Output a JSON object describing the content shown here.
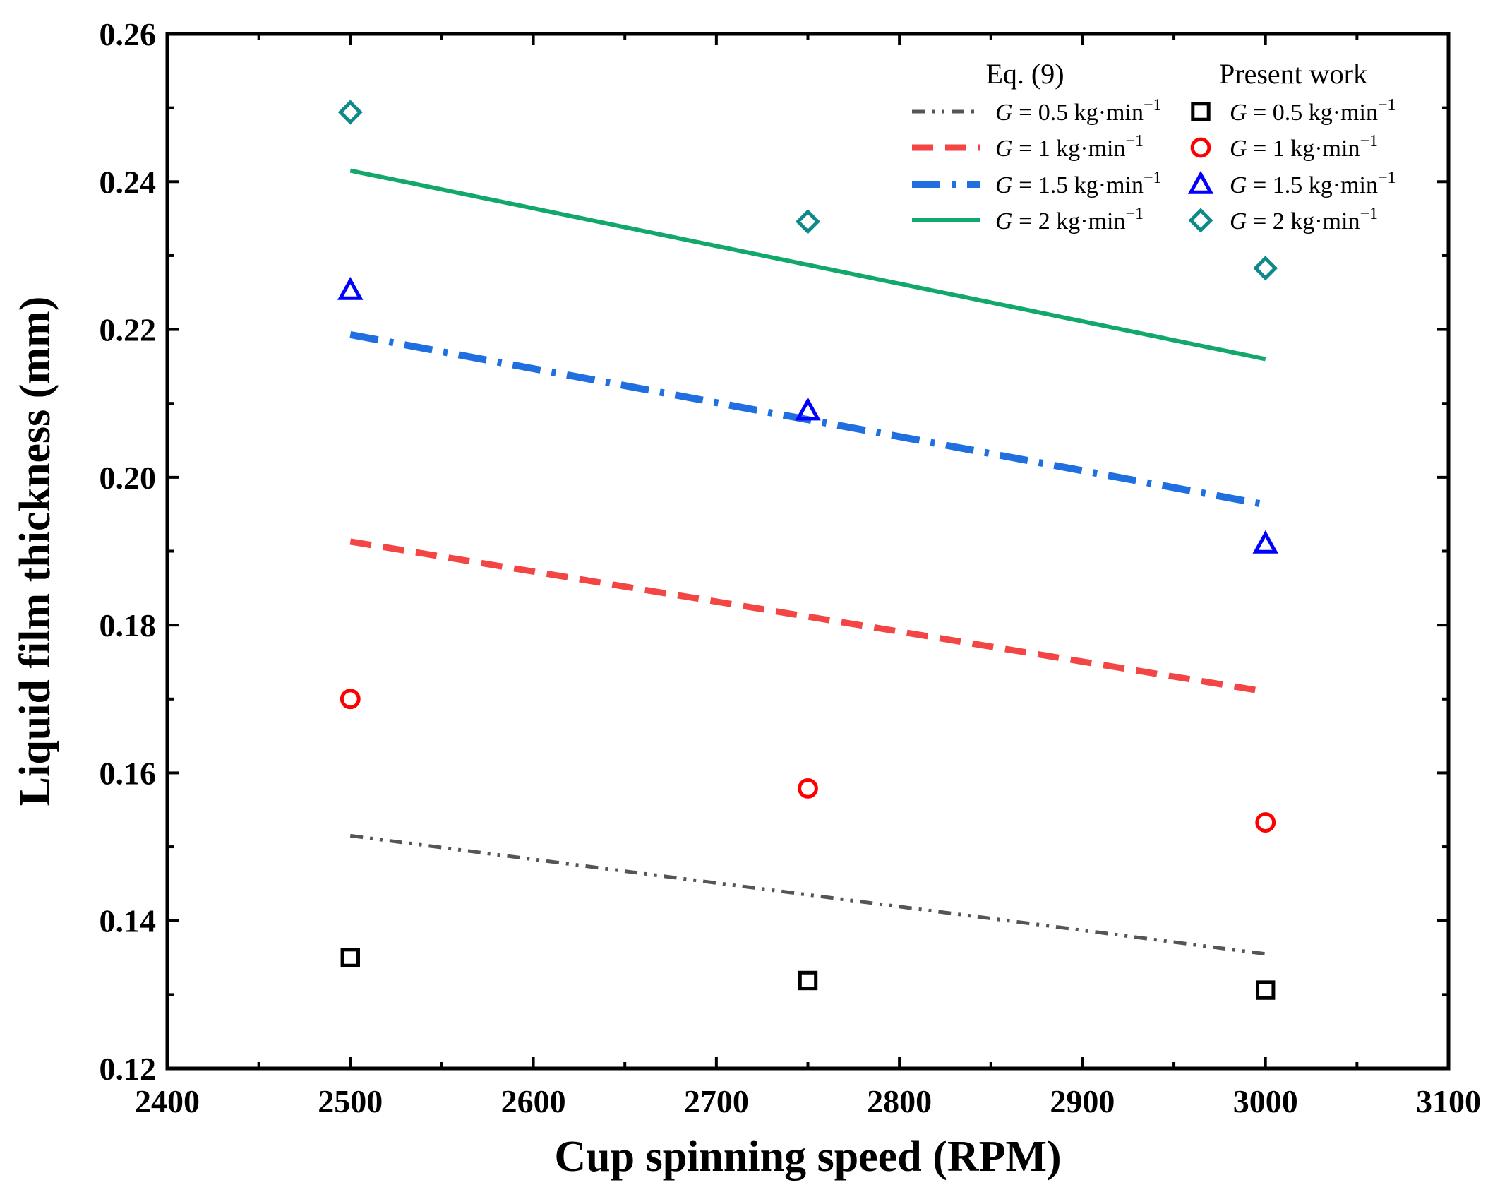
{
  "chart_data": {
    "type": "line",
    "title": "",
    "xlabel": "Cup spinning speed (RPM)",
    "ylabel": "Liquid film thickness (mm)",
    "xlim": [
      2400,
      3100
    ],
    "ylim": [
      0.12,
      0.26
    ],
    "xticks": [
      2400,
      2500,
      2600,
      2700,
      2800,
      2900,
      3000,
      3100
    ],
    "xtick_labels": [
      "2400",
      "2500",
      "2600",
      "2700",
      "2800",
      "2900",
      "3000",
      "3100"
    ],
    "yticks": [
      0.12,
      0.14,
      0.16,
      0.18,
      0.2,
      0.22,
      0.24,
      0.26
    ],
    "ytick_labels": [
      "0.12",
      "0.14",
      "0.16",
      "0.18",
      "0.20",
      "0.22",
      "0.24",
      "0.26"
    ],
    "legend": {
      "placement": "top-right",
      "group_titles": [
        "Eq. (9)",
        "Present work"
      ]
    },
    "series": [
      {
        "name": "G = 0.5 kg·min⁻¹",
        "group": "Eq. (9)",
        "kind": "line",
        "style": "dash-dot-dot",
        "color": "#555555",
        "x": [
          2500,
          3000
        ],
        "y": [
          0.1515,
          0.1355
        ],
        "label_italic": "G",
        "label_rest": " = 0.5 kg·min",
        "label_sup": "−1"
      },
      {
        "name": "G = 1 kg·min⁻¹",
        "group": "Eq. (9)",
        "kind": "line",
        "style": "dash",
        "color": "#f44545",
        "x": [
          2500,
          3000
        ],
        "y": [
          0.1913,
          0.171
        ],
        "label_italic": "G",
        "label_rest": " = 1 kg·min",
        "label_sup": "−1"
      },
      {
        "name": "G = 1.5 kg·min⁻¹",
        "group": "Eq. (9)",
        "kind": "line",
        "style": "dash-dot",
        "color": "#1f6fe0",
        "x": [
          2500,
          3000
        ],
        "y": [
          0.2193,
          0.1963
        ],
        "label_italic": "G",
        "label_rest": " = 1.5 kg·min",
        "label_sup": "−1"
      },
      {
        "name": "G = 2 kg·min⁻¹",
        "group": "Eq. (9)",
        "kind": "line",
        "style": "solid",
        "color": "#12a86a",
        "x": [
          2500,
          3000
        ],
        "y": [
          0.2415,
          0.216
        ],
        "label_italic": "G",
        "label_rest": " = 2 kg·min",
        "label_sup": "−1"
      },
      {
        "name": "G = 0.5 kg·min⁻¹",
        "group": "Present work",
        "kind": "scatter",
        "marker": "square",
        "color": "#000000",
        "x": [
          2500,
          2750,
          3000
        ],
        "y": [
          0.135,
          0.1319,
          0.1306
        ],
        "label_italic": "G",
        "label_rest": " = 0.5 kg·min",
        "label_sup": "−1"
      },
      {
        "name": "G = 1 kg·min⁻¹",
        "group": "Present work",
        "kind": "scatter",
        "marker": "circle",
        "color": "#ff0000",
        "x": [
          2500,
          2750,
          3000
        ],
        "y": [
          0.17,
          0.1579,
          0.1533
        ],
        "label_italic": "G",
        "label_rest": " = 1 kg·min",
        "label_sup": "−1"
      },
      {
        "name": "G = 1.5 kg·min⁻¹",
        "group": "Present work",
        "kind": "scatter",
        "marker": "triangle",
        "color": "#0000ff",
        "x": [
          2500,
          2750,
          3000
        ],
        "y": [
          0.2253,
          0.209,
          0.191
        ],
        "label_italic": "G",
        "label_rest": " = 1.5 kg·min",
        "label_sup": "−1"
      },
      {
        "name": "G = 2 kg·min⁻¹",
        "group": "Present work",
        "kind": "scatter",
        "marker": "diamond",
        "color": "#0f8a8a",
        "x": [
          2500,
          2750,
          3000
        ],
        "y": [
          0.2494,
          0.2346,
          0.2283
        ],
        "label_italic": "G",
        "label_rest": " = 2 kg·min",
        "label_sup": "−1"
      }
    ]
  }
}
